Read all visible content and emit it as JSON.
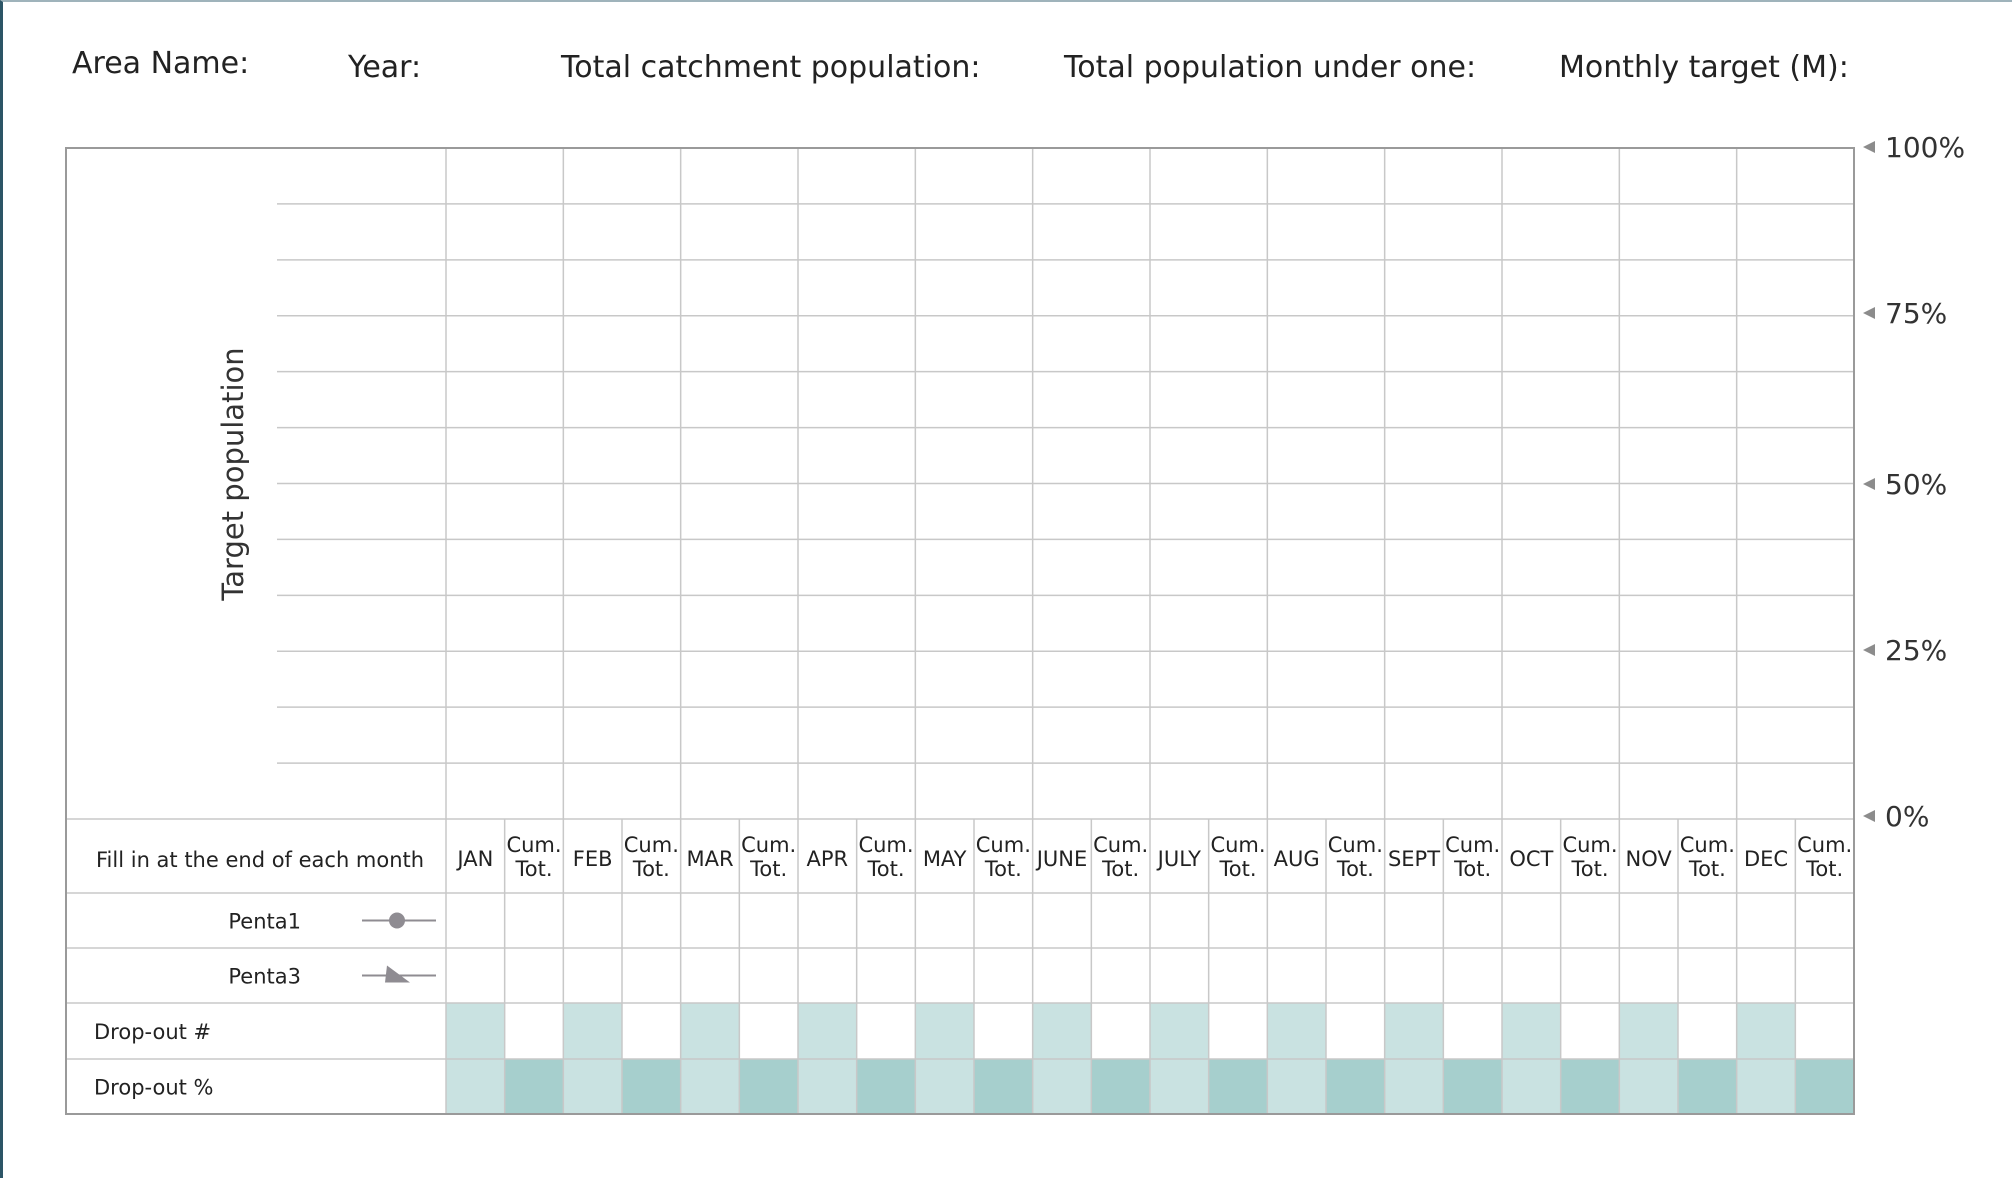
{
  "header": {
    "area_name_label": "Area Name:",
    "year_label": "Year:",
    "catchment_label": "Total catchment population:",
    "under_one_label": "Total population under one:",
    "monthly_target_label": "Monthly target (M):"
  },
  "chart": {
    "y_axis_label": "Target population",
    "percent_ticks": [
      "100%",
      "75%",
      "50%",
      "25%",
      "0%"
    ]
  },
  "table": {
    "header_label": "Fill in at the end of each month",
    "months": [
      "JAN",
      "FEB",
      "MAR",
      "APR",
      "MAY",
      "JUNE",
      "JULY",
      "AUG",
      "SEPT",
      "OCT",
      "NOV",
      "DEC"
    ],
    "cum_line1": "Cum.",
    "cum_line2": "Tot.",
    "rows": [
      {
        "label": "Penta1",
        "marker": "circle-marker-icon"
      },
      {
        "label": "Penta3",
        "marker": "triangle-marker-icon"
      }
    ],
    "dropout_count_label": "Drop-out #",
    "dropout_pct_label": "Drop-out %"
  },
  "colors": {
    "grid": "#c8c8c8",
    "border": "#9a9a9a",
    "teal_light": "#c9e2e1",
    "teal_dark": "#a6cfcd",
    "marker": "#8f8c92"
  }
}
